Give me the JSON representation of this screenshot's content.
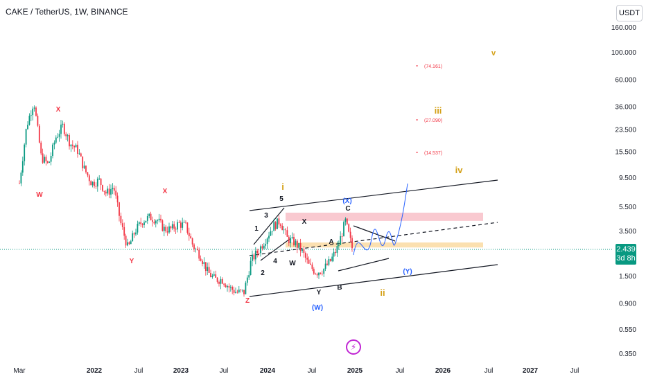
{
  "header": {
    "symbol_line": "CAKE / TetherUS, 1W, BINANCE",
    "currency": "USDT"
  },
  "price_tag": {
    "price": "2.439",
    "countdown": "3d 8h"
  },
  "colors": {
    "up": "#089981",
    "down": "#f23645",
    "orange": "#d4a017",
    "blue": "#2962ff",
    "pink_zone": "#f9c9d0",
    "yellow_zone": "#fbe0b0"
  },
  "chart_data": {
    "type": "candlestick",
    "title": "CAKE / TetherUS, 1W, BINANCE",
    "y_scale": "log",
    "ylim": [
      0.3,
      190
    ],
    "x_range": [
      "2021-03",
      "2027-10"
    ],
    "x_ticks": [
      "Mar",
      "2022",
      "Jul",
      "2023",
      "Jul",
      "2024",
      "Jul",
      "2025",
      "Jul",
      "2026",
      "Jul",
      "2027",
      "Jul"
    ],
    "y_ticks": [
      "160.000",
      "100.000",
      "60.000",
      "36.000",
      "23.500",
      "15.500",
      "9.500",
      "5.500",
      "3.500",
      "2.439",
      "1.500",
      "0.900",
      "0.550",
      "0.350"
    ],
    "last_price": 2.439,
    "price_path": [
      [
        "2021-03",
        8.5
      ],
      [
        "2021-04",
        25
      ],
      [
        "2021-05",
        40
      ],
      [
        "2021-06",
        14
      ],
      [
        "2021-07",
        12
      ],
      [
        "2021-08",
        20
      ],
      [
        "2021-09",
        25
      ],
      [
        "2021-10",
        18
      ],
      [
        "2021-11",
        16
      ],
      [
        "2021-12",
        11
      ],
      [
        "2022-01",
        8.5
      ],
      [
        "2022-02",
        9
      ],
      [
        "2022-03",
        7
      ],
      [
        "2022-04",
        8
      ],
      [
        "2022-05",
        4
      ],
      [
        "2022-06",
        2.5
      ],
      [
        "2022-07",
        3.5
      ],
      [
        "2022-08",
        4.2
      ],
      [
        "2022-09",
        4.5
      ],
      [
        "2022-10",
        4.3
      ],
      [
        "2022-11",
        3.6
      ],
      [
        "2022-12",
        3.6
      ],
      [
        "2023-01",
        4
      ],
      [
        "2023-02",
        3.8
      ],
      [
        "2023-03",
        2.6
      ],
      [
        "2023-04",
        2.2
      ],
      [
        "2023-05",
        1.6
      ],
      [
        "2023-06",
        1.4
      ],
      [
        "2023-07",
        1.4
      ],
      [
        "2023-08",
        1.2
      ],
      [
        "2023-09",
        1.1
      ],
      [
        "2023-10",
        1.1
      ],
      [
        "2023-11",
        2.0
      ],
      [
        "2023-12",
        2.4
      ],
      [
        "2024-01",
        3
      ],
      [
        "2024-02",
        3.8
      ],
      [
        "2024-03",
        4.2
      ],
      [
        "2024-04",
        3.0
      ],
      [
        "2024-05",
        2.8
      ],
      [
        "2024-06",
        2.4
      ],
      [
        "2024-07",
        1.8
      ],
      [
        "2024-08",
        1.6
      ],
      [
        "2024-09",
        1.7
      ],
      [
        "2024-10",
        2.0
      ],
      [
        "2024-11",
        2.6
      ],
      [
        "2024-12",
        4.2
      ],
      [
        "2025-01",
        2.439
      ]
    ],
    "projected_levels": [
      "(74.161)",
      "(27.090)",
      "(14.537)"
    ],
    "wave_labels": [
      "W",
      "X",
      "Y",
      "X",
      "Z",
      "i",
      "ii",
      "iii",
      "iv",
      "v",
      "1",
      "2",
      "3",
      "4",
      "5",
      "W",
      "X",
      "Y",
      "A",
      "B",
      "C",
      "(W)",
      "(X)",
      "(Y)"
    ],
    "zones": [
      {
        "name": "resistance",
        "from": 4.2,
        "to": 4.9
      },
      {
        "name": "support",
        "from": 2.55,
        "to": 2.8
      }
    ],
    "grid": false
  }
}
